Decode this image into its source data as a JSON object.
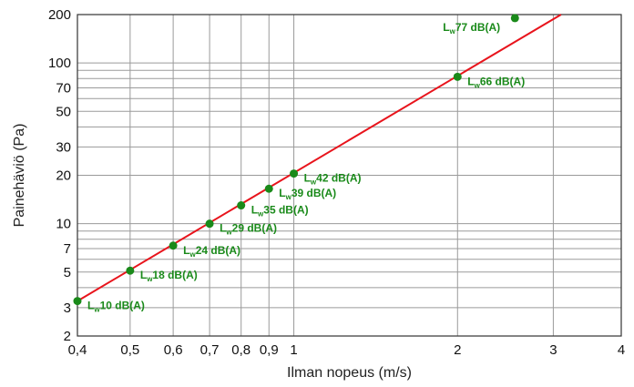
{
  "chart_data": {
    "type": "line",
    "title": "",
    "xlabel": "Ilman nopeus (m/s)",
    "ylabel": "Painehäviö (Pa)",
    "x_scale": "log",
    "y_scale": "log",
    "xlim": [
      0.4,
      4
    ],
    "ylim": [
      2,
      200
    ],
    "grid": true,
    "x_ticks": [
      0.4,
      0.5,
      0.6,
      0.7,
      0.8,
      0.9,
      1,
      2,
      3,
      4
    ],
    "x_tick_labels": [
      "0,4",
      "0,5",
      "0,6",
      "0,7",
      "0,8",
      "0,9",
      "1",
      "2",
      "3",
      "4"
    ],
    "y_ticks": [
      2,
      3,
      5,
      7,
      10,
      20,
      30,
      50,
      70,
      100,
      200
    ],
    "y_tick_labels": [
      "2",
      "3",
      "5",
      "7",
      "10",
      "20",
      "30",
      "50",
      "70",
      "100",
      "200"
    ],
    "y_minor_grid": [
      4,
      6,
      8,
      9,
      40,
      60,
      80,
      90
    ],
    "line": {
      "x": [
        0.4,
        3.1
      ],
      "y": [
        3.3,
        200
      ],
      "color": "#e8141c"
    },
    "points": [
      {
        "x": 0.4,
        "y": 3.3,
        "label_main": "L",
        "label_sub": "w",
        "label_rest": "10 dB(A)"
      },
      {
        "x": 0.5,
        "y": 5.1,
        "label_main": "L",
        "label_sub": "w",
        "label_rest": "18 dB(A)"
      },
      {
        "x": 0.6,
        "y": 7.3,
        "label_main": "L",
        "label_sub": "w",
        "label_rest": "24 dB(A)"
      },
      {
        "x": 0.7,
        "y": 10,
        "label_main": "L",
        "label_sub": "w",
        "label_rest": "29 dB(A)"
      },
      {
        "x": 0.8,
        "y": 13,
        "label_main": "L",
        "label_sub": "w",
        "label_rest": "35 dB(A)"
      },
      {
        "x": 0.9,
        "y": 16.5,
        "label_main": "L",
        "label_sub": "w",
        "label_rest": "39 dB(A)"
      },
      {
        "x": 1,
        "y": 20.5,
        "label_main": "L",
        "label_sub": "w",
        "label_rest": "42 dB(A)"
      },
      {
        "x": 2,
        "y": 82,
        "label_main": "L",
        "label_sub": "w",
        "label_rest": "66 dB(A)"
      },
      {
        "x": 2.55,
        "y": 190,
        "label_main": "L",
        "label_sub": "w",
        "label_rest": "77 dB(A)"
      }
    ],
    "point_color": "#1a8a1a",
    "label_color": "#1a8a1a"
  }
}
